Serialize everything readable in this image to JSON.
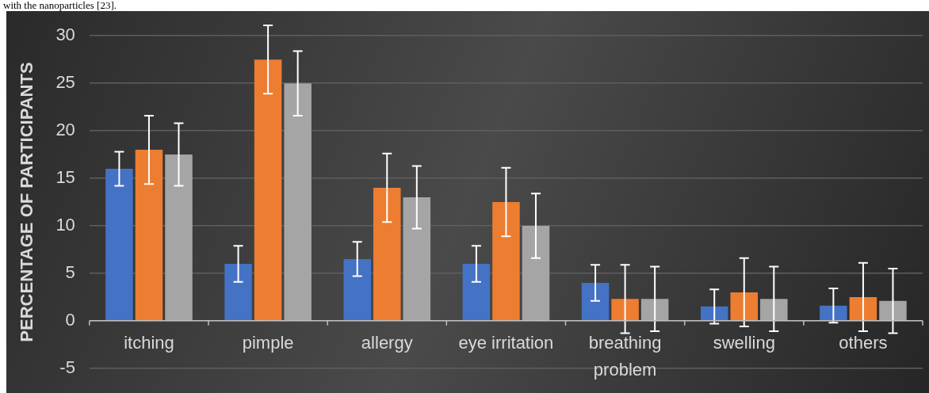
{
  "chart_data": {
    "type": "bar",
    "ylabel": "PERCENTAGE OF PARTICIPANTS",
    "annotations": [
      "with the nanoparticles [23]."
    ],
    "categories": [
      "itching",
      "pimple",
      "allergy",
      "eye irritation",
      "breathing problem",
      "swelling",
      "others"
    ],
    "series": [
      {
        "color": "#4472c4",
        "values": [
          16,
          6,
          6.5,
          6,
          4,
          1.5,
          1.6
        ],
        "errors": [
          1.8,
          1.9,
          1.8,
          1.9,
          1.9,
          1.8,
          1.8
        ]
      },
      {
        "color": "#ed7d31",
        "values": [
          18,
          27.5,
          14,
          12.5,
          2.3,
          3,
          2.5
        ],
        "errors": [
          3.6,
          3.6,
          3.6,
          3.6,
          3.6,
          3.6,
          3.6
        ]
      },
      {
        "color": "#a5a5a5",
        "values": [
          17.5,
          25,
          13,
          10,
          2.3,
          2.3,
          2.1
        ],
        "errors": [
          3.3,
          3.4,
          3.3,
          3.4,
          3.4,
          3.4,
          3.4
        ]
      }
    ],
    "ylim": [
      -5,
      30
    ],
    "yticks": [
      -5,
      0,
      5,
      10,
      15,
      20,
      25,
      30
    ],
    "grid": "y",
    "legend": false
  }
}
